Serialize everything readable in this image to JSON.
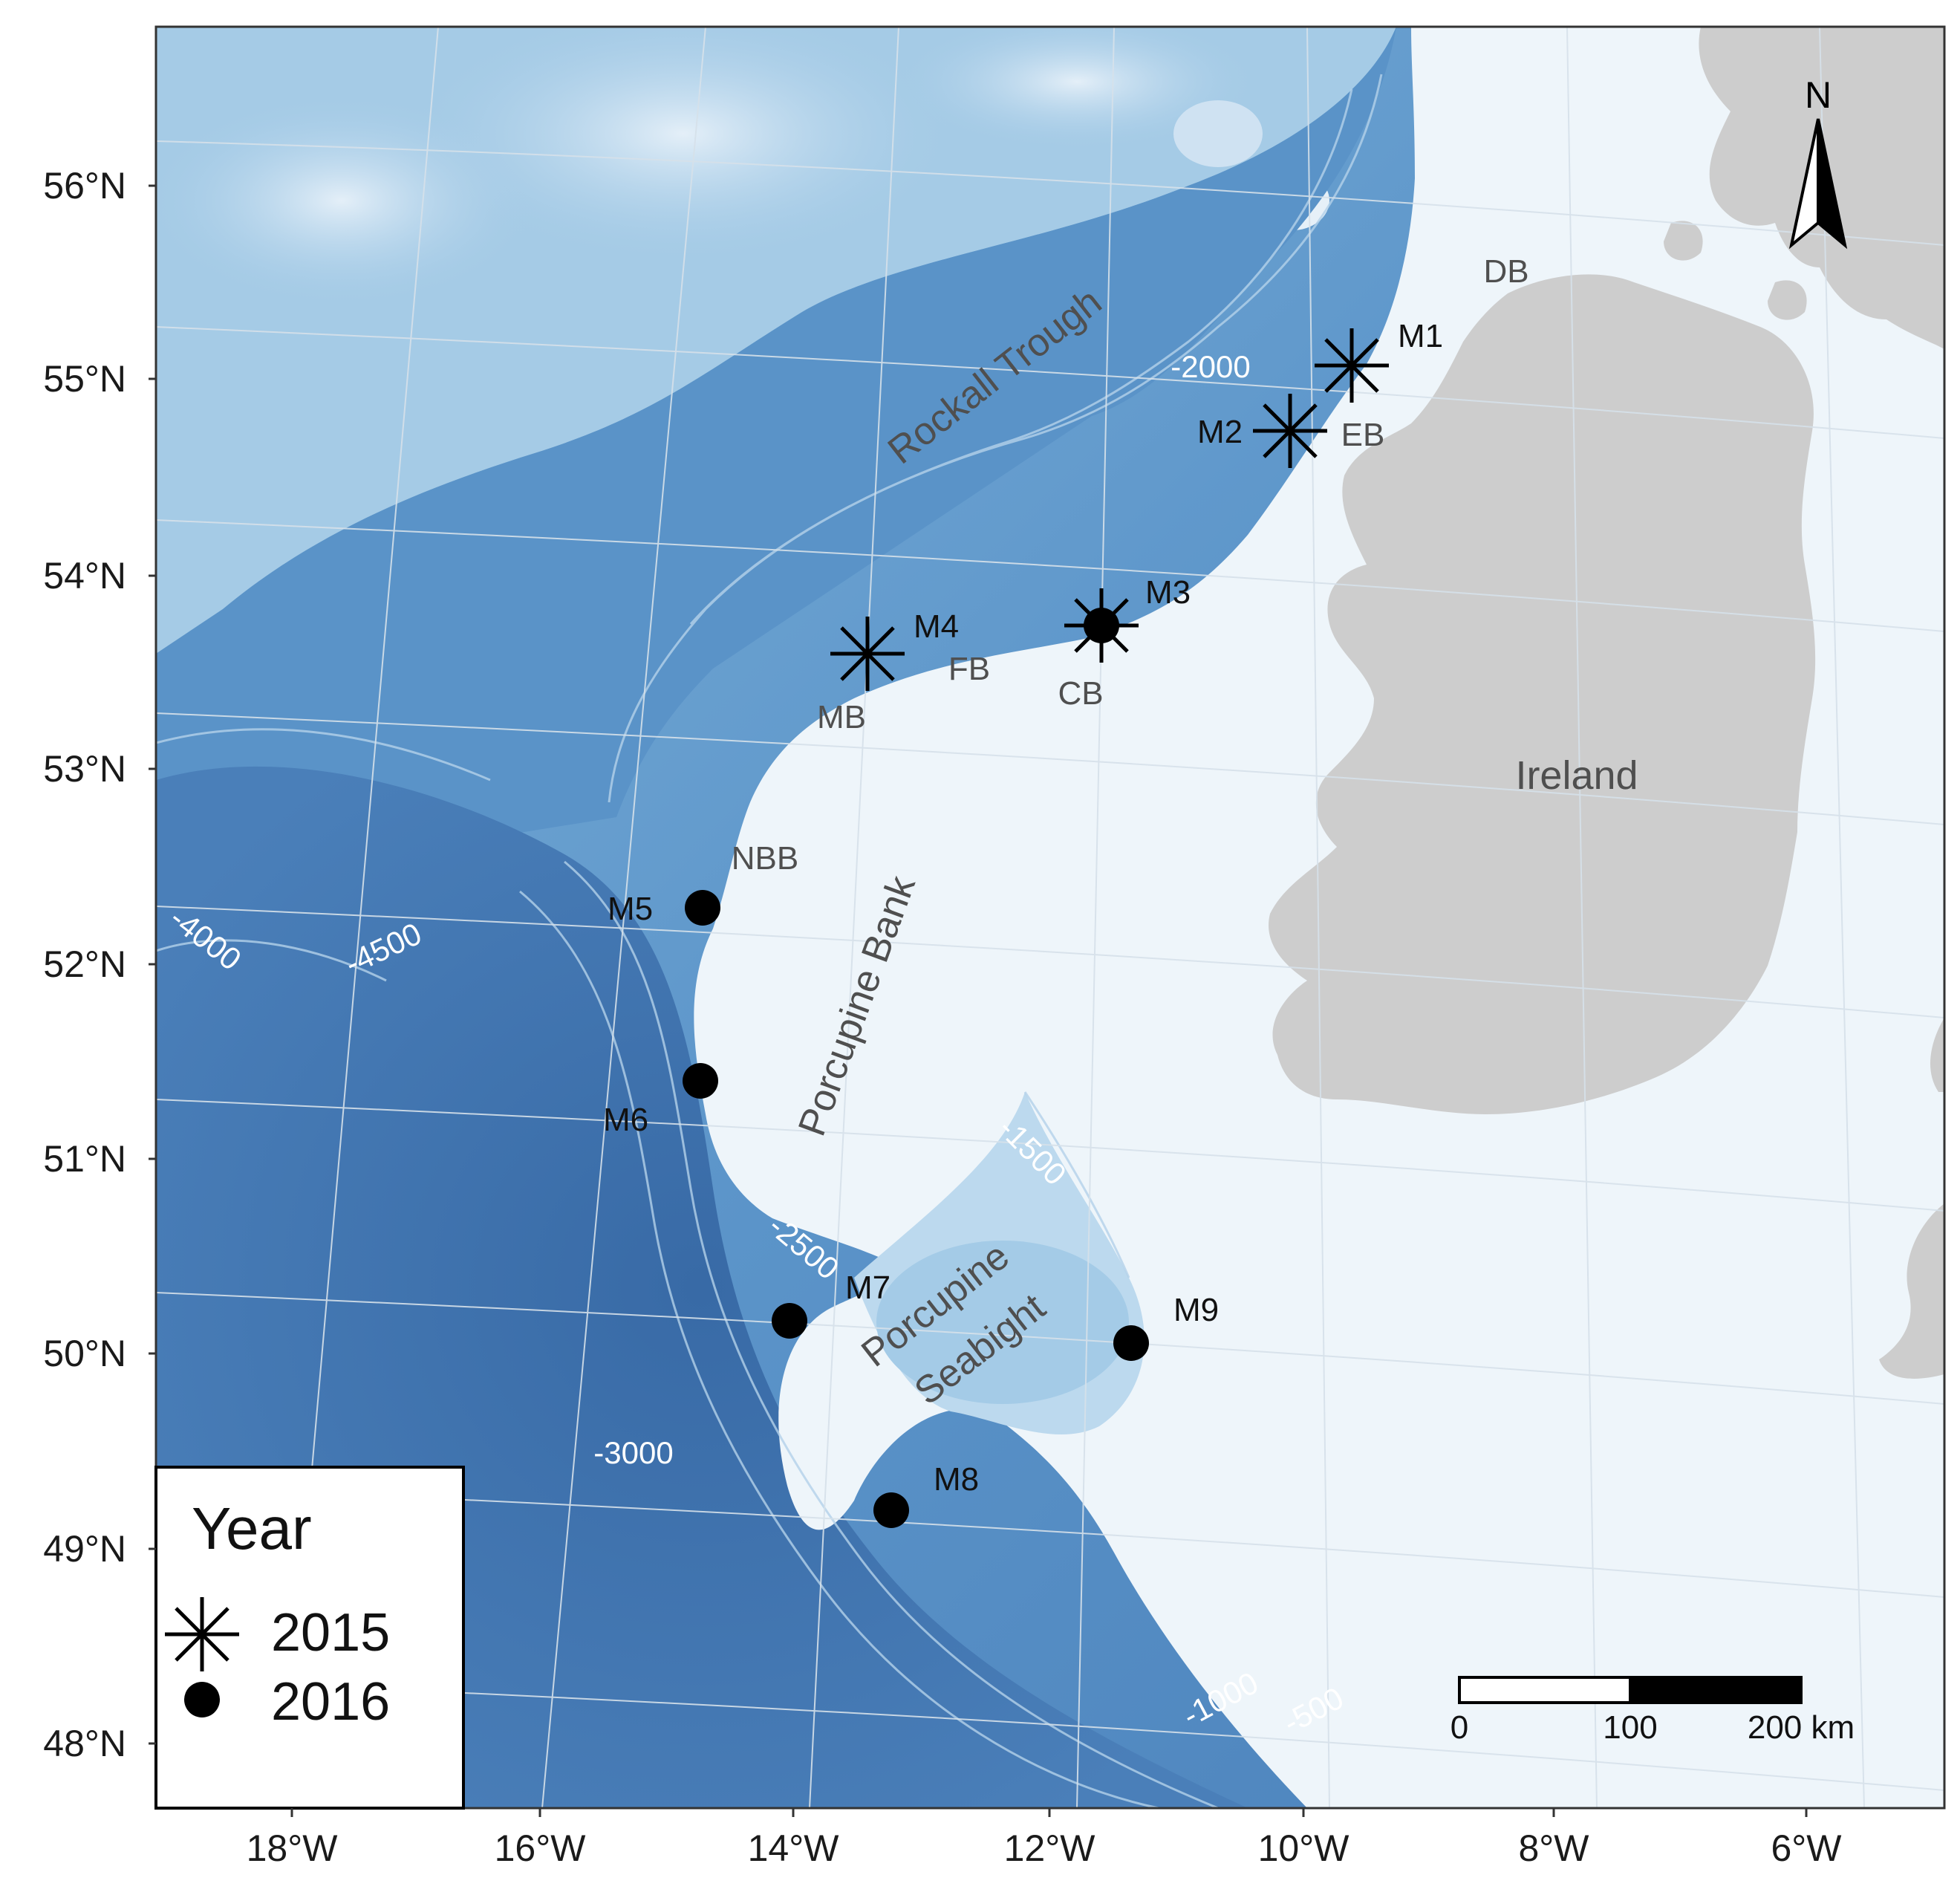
{
  "map": {
    "latitude_labels": [
      "56°N",
      "55°N",
      "54°N",
      "53°N",
      "52°N",
      "51°N",
      "50°N",
      "49°N",
      "48°N"
    ],
    "longitude_labels": [
      "18°W",
      "16°W",
      "14°W",
      "12°W",
      "10°W",
      "8°W",
      "6°W"
    ],
    "north_arrow_label": "N",
    "features": {
      "rockall_trough": "Rockall Trough",
      "porcupine_bank": "Porcupine Bank",
      "porcupine_seabight_line1": "Porcupine",
      "porcupine_seabight_line2": "Seabight",
      "ireland": "Ireland",
      "db": "DB",
      "eb": "EB",
      "fb": "FB",
      "mb": "MB",
      "cb": "CB",
      "nbb": "NBB"
    },
    "contours": {
      "c2000": "-2000",
      "c4000": "-4000",
      "c4500": "-4500",
      "c1500": "-1500",
      "c2500": "-2500",
      "c3000": "-3000",
      "c1000": "-1000",
      "c500": "-500"
    },
    "sites": [
      {
        "label": "M1",
        "year": "2015"
      },
      {
        "label": "M2",
        "year": "2015"
      },
      {
        "label": "M3",
        "year": "2015 + 2016"
      },
      {
        "label": "M4",
        "year": "2015"
      },
      {
        "label": "M5",
        "year": "2016"
      },
      {
        "label": "M6",
        "year": "2016"
      },
      {
        "label": "M7",
        "year": "2016"
      },
      {
        "label": "M8",
        "year": "2016"
      },
      {
        "label": "M9",
        "year": "2016"
      }
    ],
    "legend": {
      "title": "Year",
      "items": [
        {
          "label": "2015",
          "symbol": "asterisk"
        },
        {
          "label": "2016",
          "symbol": "filled-circle"
        }
      ]
    },
    "scale_bar": {
      "labels": [
        "0",
        "100",
        "200 km"
      ]
    },
    "colors": {
      "deep_ocean": "#3d6faa",
      "mid_ocean": "#5b94c9",
      "shallow": "#e9f2f8",
      "land": "#cdcdcd",
      "marker": "#000000",
      "feature_text": "#4f4f4f",
      "contour_text": "#ffffff"
    }
  }
}
